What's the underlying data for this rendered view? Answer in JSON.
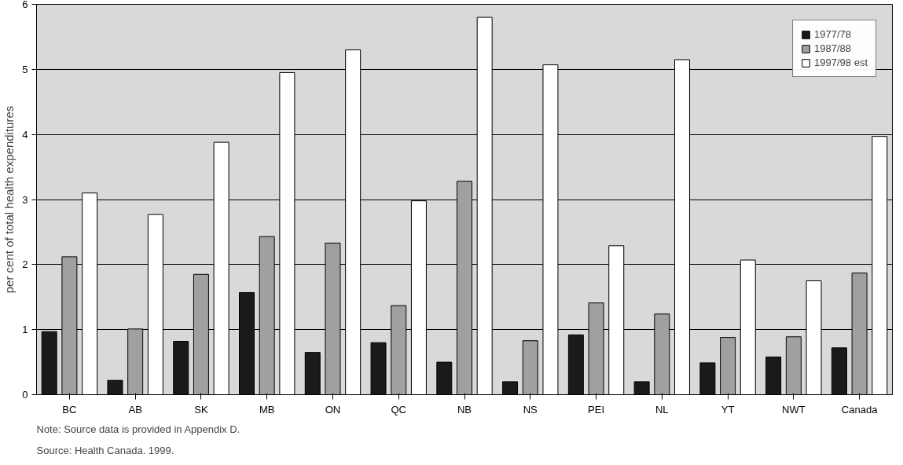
{
  "chart_data": {
    "type": "bar",
    "ylabel": "per cent of total health expenditures",
    "categories": [
      "BC",
      "AB",
      "SK",
      "MB",
      "ON",
      "QC",
      "NB",
      "NS",
      "PEI",
      "NL",
      "YT",
      "NWT",
      "Canada"
    ],
    "series": [
      {
        "name": "1977/78",
        "color": "#1a1a1a",
        "values": [
          0.97,
          0.22,
          0.82,
          1.57,
          0.65,
          0.8,
          0.5,
          0.2,
          0.92,
          0.2,
          0.49,
          0.58,
          0.72
        ]
      },
      {
        "name": "1987/88",
        "color": "#a0a0a0",
        "values": [
          2.12,
          1.01,
          1.85,
          2.43,
          2.33,
          1.37,
          3.28,
          0.83,
          1.41,
          1.24,
          0.88,
          0.89,
          1.87
        ]
      },
      {
        "name": "1997/98 est",
        "color": "#ffffff",
        "values": [
          3.1,
          2.77,
          3.88,
          4.95,
          5.3,
          2.98,
          5.8,
          5.07,
          2.29,
          5.15,
          2.07,
          1.75,
          3.97
        ]
      }
    ],
    "ylim": [
      0,
      6
    ],
    "yticks": [
      0,
      1,
      2,
      3,
      4,
      5,
      6
    ],
    "grid": "y",
    "legend": "top right",
    "annotations": [
      "Note:     Source data is provided in Appendix D.",
      "Source:  Health Canada. 1999."
    ]
  }
}
